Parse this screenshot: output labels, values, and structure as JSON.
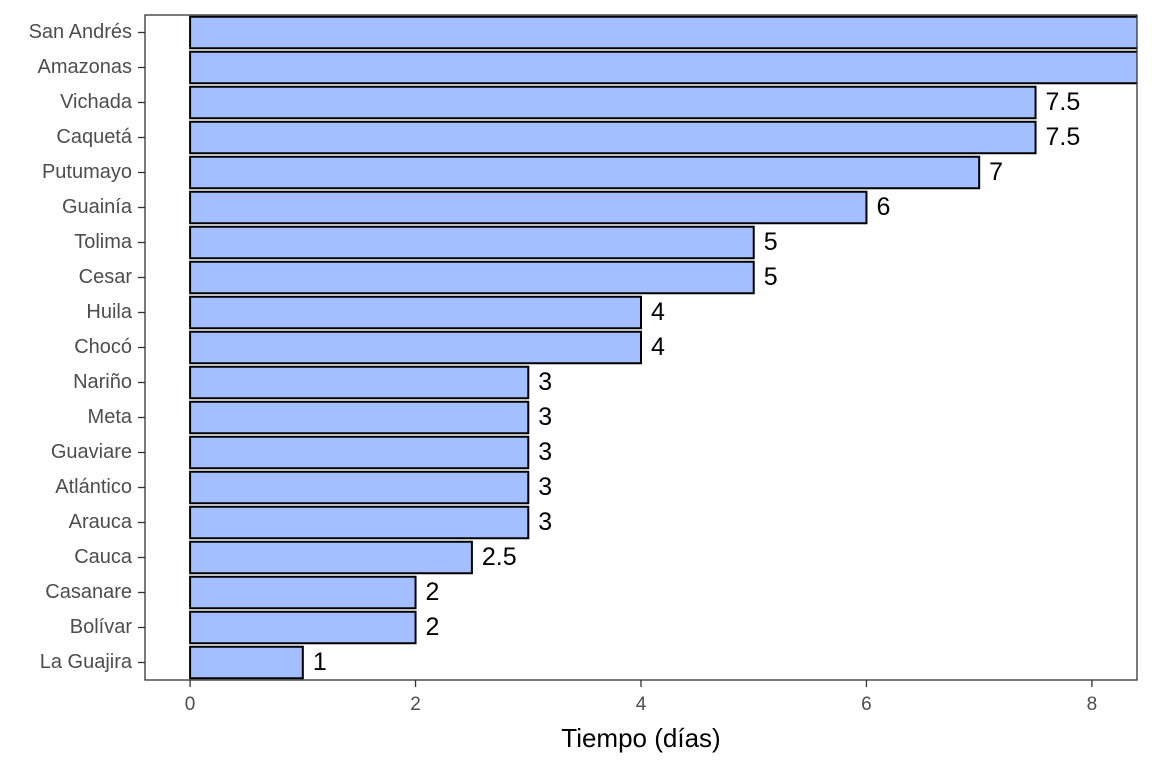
{
  "chart_data": {
    "type": "bar",
    "orientation": "horizontal",
    "x_label": "Tiempo (días)",
    "categories": [
      "San Andrés",
      "Amazonas",
      "Vichada",
      "Caquetá",
      "Putumayo",
      "Guainía",
      "Tolima",
      "Cesar",
      "Huila",
      "Chocó",
      "Nariño",
      "Meta",
      "Guaviare",
      "Atlántico",
      "Arauca",
      "Cauca",
      "Casanare",
      "Bolívar",
      "La Guajira"
    ],
    "values": [
      9,
      9,
      7.5,
      7.5,
      7,
      6,
      5,
      5,
      4,
      4,
      3,
      3,
      3,
      3,
      3,
      2.5,
      2,
      2,
      1
    ],
    "color": "#a3bfff",
    "xlim": [
      -0.4,
      8.4
    ],
    "xticks": [
      0,
      2,
      4,
      6,
      8
    ],
    "grid": false
  }
}
